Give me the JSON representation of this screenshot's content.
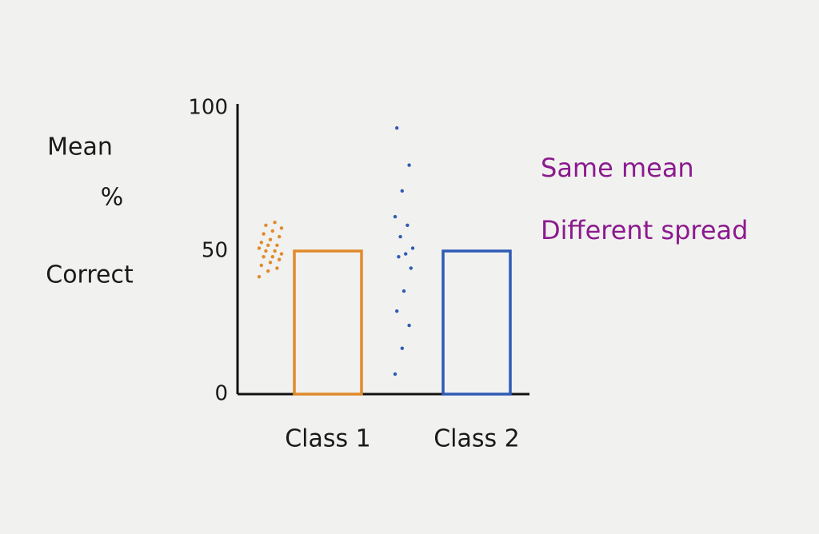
{
  "chart_data": {
    "type": "bar",
    "ylabel": [
      "Mean",
      "%",
      "Correct"
    ],
    "categories": [
      "Class 1",
      "Class 2"
    ],
    "values": [
      50,
      50
    ],
    "colors": [
      "#e08a2c",
      "#2f5bb5"
    ],
    "spread": [
      [
        41,
        43,
        44,
        45,
        46,
        47,
        48,
        48,
        49,
        50,
        50,
        51,
        52,
        52,
        53,
        54,
        55,
        56,
        57,
        58,
        59,
        60
      ],
      [
        7,
        16,
        24,
        29,
        36,
        44,
        48,
        49,
        51,
        55,
        59,
        62,
        71,
        80,
        93
      ]
    ],
    "ylim": [
      0,
      100
    ],
    "yticks": [
      0,
      50,
      100
    ],
    "annotation": [
      "Same mean",
      "Different spread"
    ]
  }
}
